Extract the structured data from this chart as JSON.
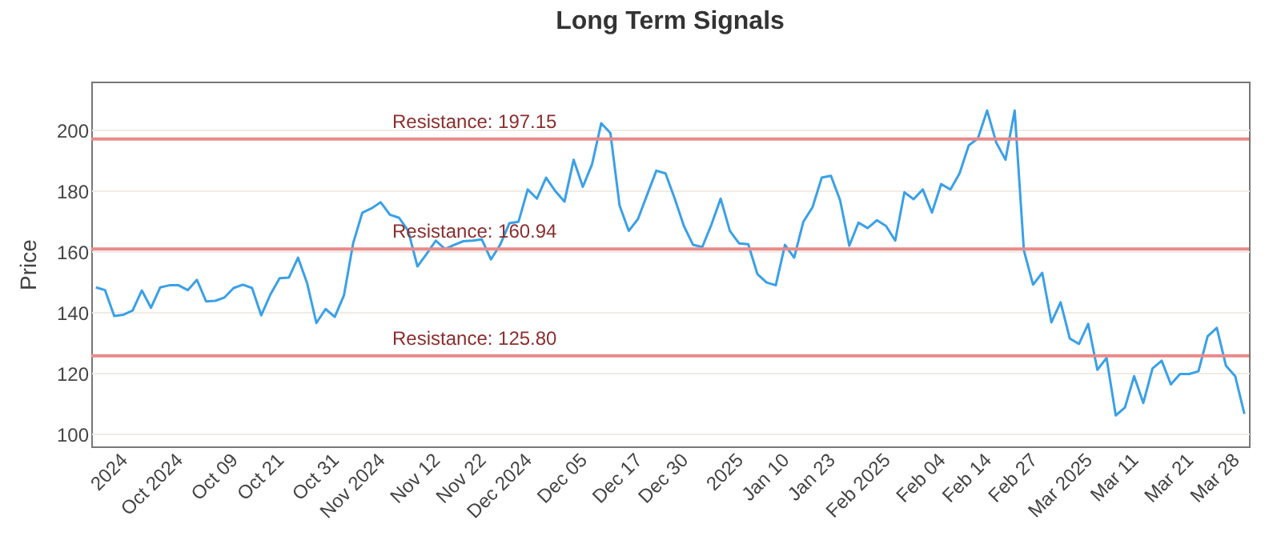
{
  "chart_data": {
    "type": "line",
    "title": "Long Term Signals",
    "ylabel": "Price",
    "categories": [
      null,
      null,
      null,
      "2024",
      null,
      null,
      null,
      null,
      null,
      "Oct 2024",
      null,
      null,
      null,
      null,
      null,
      "Oct 09",
      null,
      null,
      null,
      null,
      "Oct 21",
      null,
      null,
      null,
      null,
      null,
      "Oct 31",
      null,
      null,
      null,
      null,
      "Nov 2024",
      null,
      null,
      null,
      null,
      null,
      "Nov 12",
      null,
      null,
      null,
      null,
      "Nov 22",
      null,
      null,
      null,
      null,
      "Dec 2024",
      null,
      null,
      null,
      null,
      null,
      "Dec 05",
      null,
      null,
      null,
      null,
      null,
      "Dec 17",
      null,
      null,
      null,
      null,
      "Dec 30",
      null,
      null,
      null,
      null,
      null,
      "2025",
      null,
      null,
      null,
      null,
      "Jan 10",
      null,
      null,
      null,
      null,
      "Jan 23",
      null,
      null,
      null,
      null,
      null,
      "Feb 2025",
      null,
      null,
      null,
      null,
      null,
      "Feb 04",
      null,
      null,
      null,
      null,
      "Feb 14",
      null,
      null,
      null,
      null,
      "Feb 27",
      null,
      null,
      null,
      null,
      null,
      "Mar 2025",
      null,
      null,
      null,
      null,
      "Mar 11",
      null,
      null,
      null,
      null,
      null,
      "Mar 21",
      null,
      null,
      null,
      null,
      "Mar 28",
      null
    ],
    "series": [
      {
        "color": "#3aa0e8",
        "values": [
          148.3,
          147.4,
          138.9,
          139.3,
          140.7,
          147.3,
          141.6,
          148.3,
          149.0,
          149.0,
          147.4,
          150.8,
          143.7,
          143.9,
          145.0,
          148.1,
          149.2,
          148.1,
          139.1,
          146.0,
          151.3,
          151.5,
          158.1,
          149.6,
          136.6,
          141.2,
          138.6,
          145.7,
          162.8,
          172.9,
          174.3,
          176.3,
          172.2,
          171.2,
          166.9,
          155.2,
          159.3,
          163.7,
          160.9,
          162.3,
          163.5,
          163.7,
          164.1,
          157.5,
          162.3,
          169.4,
          169.9,
          180.5,
          177.5,
          184.4,
          180.0,
          176.5,
          190.3,
          181.4,
          188.8,
          202.3,
          199.1,
          175.2,
          166.9,
          170.8,
          178.8,
          186.7,
          185.8,
          177.5,
          168.5,
          162.3,
          161.6,
          169.0,
          177.5,
          166.9,
          162.8,
          162.5,
          152.7,
          149.9,
          149.0,
          162.3,
          158.1,
          169.9,
          174.7,
          184.4,
          185.0,
          177.0,
          162.0,
          169.6,
          167.8,
          170.4,
          168.5,
          163.7,
          179.6,
          177.3,
          180.5,
          172.9,
          182.3,
          180.5,
          185.8,
          195.0,
          197.3,
          206.5,
          195.9,
          190.3,
          206.5,
          160.5,
          149.2,
          153.1,
          136.8,
          143.4,
          131.5,
          129.7,
          136.3,
          121.2,
          125.1,
          106.2,
          108.8,
          119.1,
          110.3,
          121.6,
          124.2,
          116.4,
          119.8,
          119.8,
          120.7,
          132.2,
          135.0,
          122.5,
          119.1,
          106.7
        ]
      }
    ],
    "ylim": [
      96,
      216
    ],
    "yticks": [
      100,
      120,
      140,
      160,
      180,
      200
    ],
    "grid": "y",
    "marker": "none",
    "line_style": "solid",
    "ref_lines": [
      {
        "axis": "y",
        "value": 197.15,
        "label": "Resistance: 197.15",
        "color": "#e88a8a"
      },
      {
        "axis": "y",
        "value": 160.94,
        "label": "Resistance: 160.94",
        "color": "#e88a8a"
      },
      {
        "axis": "y",
        "value": 125.8,
        "label": "Resistance: 125.80",
        "color": "#e88a8a"
      }
    ]
  }
}
